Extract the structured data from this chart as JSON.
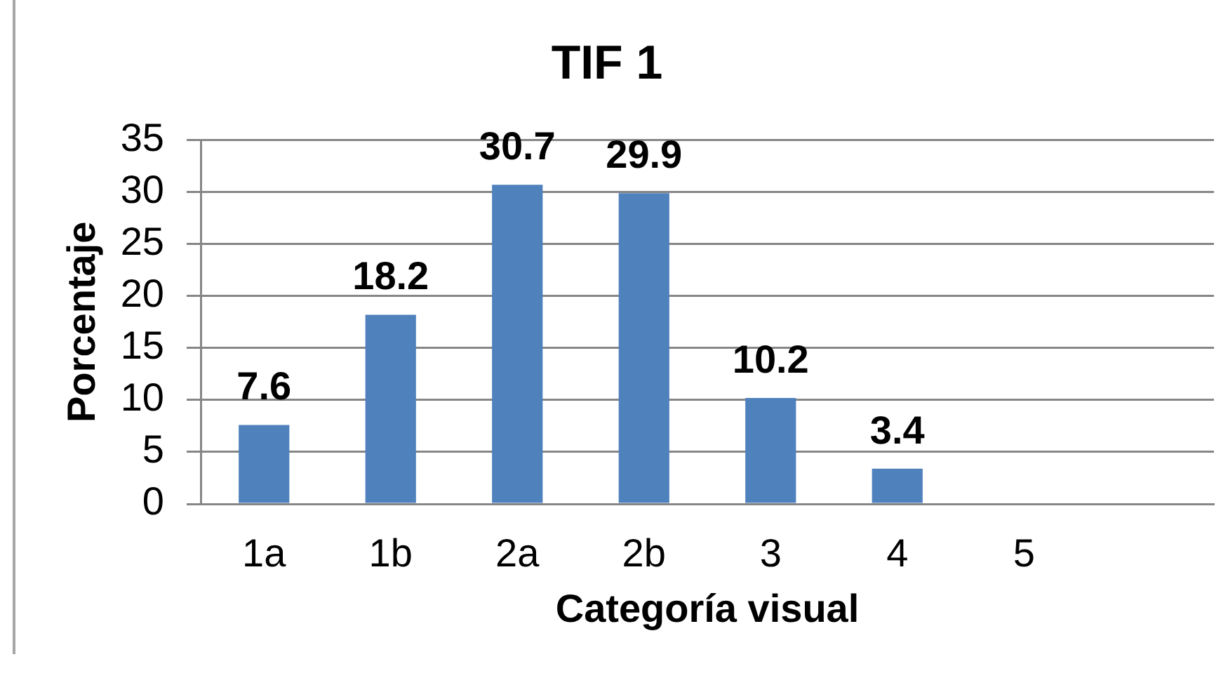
{
  "chart_data": {
    "type": "bar",
    "title": "TIF 1",
    "xlabel": "Categoría visual",
    "ylabel": "Porcentaje",
    "categories": [
      "1a",
      "1b",
      "2a",
      "2b",
      "3",
      "4",
      "5",
      null
    ],
    "values": [
      7.6,
      18.2,
      30.7,
      29.9,
      10.2,
      3.4,
      null,
      null
    ],
    "color": "#4f81bd",
    "ylim": [
      0,
      35
    ],
    "yticks": [
      0,
      5,
      10,
      15,
      20,
      25,
      30,
      35
    ],
    "grid": "y",
    "data_labels": true
  }
}
